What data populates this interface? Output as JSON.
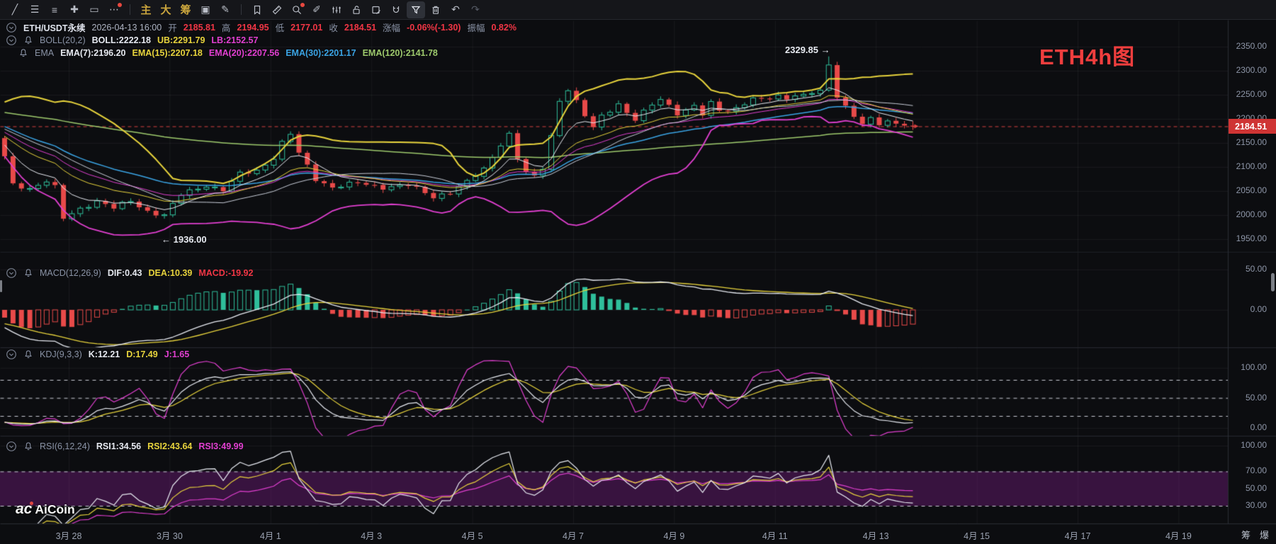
{
  "theme": {
    "bg": "#0c0d10",
    "grid": "rgba(255,255,255,0.055)",
    "panel_line": "#272a31",
    "axis_line": "#2a2d34",
    "up": "#2fbf9b",
    "down": "#e84a49",
    "yellow": "#e7d33c",
    "magenta": "#e13fd0",
    "cyan": "#3aa3e3",
    "green": "#9dc96c",
    "white_line": "#e8ebf2",
    "gray_line": "#c9ced9",
    "dashed_price": "#d94040",
    "badge": "#cf3434",
    "purple_band": "rgba(118,28,128,0.42)",
    "dash_guide": "#c8ccd4",
    "axis_text": "#8e96a8"
  },
  "toolbar": {
    "items": [
      {
        "t": "g",
        "name": "line-tool",
        "glyph": "╱"
      },
      {
        "t": "g",
        "name": "indicator-list-icon",
        "glyph": "☰"
      },
      {
        "t": "g",
        "name": "template-list-icon",
        "glyph": "≡"
      },
      {
        "t": "g",
        "name": "crosshair-tool",
        "glyph": "✚"
      },
      {
        "t": "g",
        "name": "rectangle-tool",
        "glyph": "▭"
      },
      {
        "t": "g",
        "name": "more-tools-icon",
        "glyph": "⋯",
        "dot": true
      },
      {
        "t": "d"
      },
      {
        "t": "g",
        "name": "main-chart-button",
        "glyph": "主",
        "gold": true
      },
      {
        "t": "g",
        "name": "large-view-button",
        "glyph": "大",
        "gold": true
      },
      {
        "t": "g",
        "name": "chips-button",
        "glyph": "筹",
        "gold": true
      },
      {
        "t": "g",
        "name": "edit-box-icon",
        "glyph": "▣"
      },
      {
        "t": "g",
        "name": "quick-brush-icon",
        "glyph": "✎"
      },
      {
        "t": "d"
      },
      {
        "t": "s",
        "name": "bookmark-icon",
        "sym": "bookmark"
      },
      {
        "t": "s",
        "name": "ruler-icon",
        "sym": "ruler"
      },
      {
        "t": "s",
        "name": "zoom-search-icon",
        "sym": "magnifier",
        "dot": true
      },
      {
        "t": "g",
        "name": "pencil-icon",
        "glyph": "✐"
      },
      {
        "t": "s",
        "name": "kline-bars-icon",
        "sym": "bars"
      },
      {
        "t": "s",
        "name": "lock-icon",
        "sym": "lock"
      },
      {
        "t": "s",
        "name": "note-edit-icon",
        "sym": "note"
      },
      {
        "t": "s",
        "name": "magnet-icon",
        "sym": "magnet"
      },
      {
        "t": "s",
        "name": "filter-icon",
        "sym": "funnel",
        "active": true
      },
      {
        "t": "s",
        "name": "trash-icon",
        "sym": "trash"
      },
      {
        "t": "g",
        "name": "undo-icon",
        "glyph": "↶"
      },
      {
        "t": "g",
        "name": "redo-icon",
        "glyph": "↷",
        "muted": true
      }
    ]
  },
  "legend": {
    "row1": {
      "segments": [
        {
          "text": "ETH/USDT永续",
          "color": "#dfe3ec",
          "b": true
        },
        {
          "text": "2026-04-13 16:00",
          "color": "#aeb4c2"
        },
        {
          "text": "开",
          "color": "#8a93a6"
        },
        {
          "text": "2185.81",
          "color": "#f23645",
          "b": true
        },
        {
          "text": "高",
          "color": "#8a93a6"
        },
        {
          "text": "2194.95",
          "color": "#f23645",
          "b": true
        },
        {
          "text": "低",
          "color": "#8a93a6"
        },
        {
          "text": "2177.01",
          "color": "#f23645",
          "b": true
        },
        {
          "text": "收",
          "color": "#8a93a6"
        },
        {
          "text": "2184.51",
          "color": "#f23645",
          "b": true
        },
        {
          "text": "涨幅",
          "color": "#8a93a6"
        },
        {
          "text": "-0.06%(-1.30)",
          "color": "#f23645",
          "b": true
        },
        {
          "text": "振幅",
          "color": "#8a93a6"
        },
        {
          "text": "0.82%",
          "color": "#f23645",
          "b": true
        }
      ]
    },
    "row2": {
      "segments": [
        {
          "text": "BOLL(20,2)",
          "color": "#8a93a6"
        },
        {
          "text": "BOLL:2222.18",
          "color": "#e6e9f0",
          "b": true
        },
        {
          "text": "UB:2291.79",
          "color": "#e7d33c",
          "b": true
        },
        {
          "text": "LB:2152.57",
          "color": "#e13fd0",
          "b": true
        }
      ]
    },
    "row3": {
      "segments": [
        {
          "text": "EMA",
          "color": "#8a93a6"
        },
        {
          "text": "EMA(7):2196.20",
          "color": "#e6e9f0",
          "b": true
        },
        {
          "text": "EMA(15):2207.18",
          "color": "#e7d33c",
          "b": true
        },
        {
          "text": "EMA(20):2207.56",
          "color": "#e13fd0",
          "b": true
        },
        {
          "text": "EMA(30):2201.17",
          "color": "#3aa3e3",
          "b": true
        },
        {
          "text": "EMA(120):2141.78",
          "color": "#9dc96c",
          "b": true
        }
      ]
    },
    "macd": {
      "segments": [
        {
          "text": "MACD(12,26,9)",
          "color": "#8a93a6"
        },
        {
          "text": "DIF:0.43",
          "color": "#e6e9f0",
          "b": true
        },
        {
          "text": "DEA:10.39",
          "color": "#e7d33c",
          "b": true
        },
        {
          "text": "MACD:-19.92",
          "color": "#f23645",
          "b": true
        }
      ]
    },
    "kdj": {
      "segments": [
        {
          "text": "KDJ(9,3,3)",
          "color": "#8a93a6"
        },
        {
          "text": "K:12.21",
          "color": "#e6e9f0",
          "b": true
        },
        {
          "text": "D:17.49",
          "color": "#e7d33c",
          "b": true
        },
        {
          "text": "J:1.65",
          "color": "#e13fd0",
          "b": true
        }
      ]
    },
    "rsi": {
      "segments": [
        {
          "text": "RSI(6,12,24)",
          "color": "#8a93a6"
        },
        {
          "text": "RSI1:34.56",
          "color": "#e6e9f0",
          "b": true
        },
        {
          "text": "RSI2:43.64",
          "color": "#e7d33c",
          "b": true
        },
        {
          "text": "RSI3:49.99",
          "color": "#e13fd0",
          "b": true
        }
      ]
    }
  },
  "axes": {
    "price_ticks": [
      {
        "v": 2350,
        "t": "2350.00"
      },
      {
        "v": 2300,
        "t": "2300.00"
      },
      {
        "v": 2250,
        "t": "2250.00"
      },
      {
        "v": 2200,
        "t": "2200.00"
      },
      {
        "v": 2150,
        "t": "2150.00"
      },
      {
        "v": 2100,
        "t": "2100.00"
      },
      {
        "v": 2050,
        "t": "2050.00"
      },
      {
        "v": 2000,
        "t": "2000.00"
      },
      {
        "v": 1950,
        "t": "1950.00"
      }
    ],
    "macd_ticks": [
      {
        "v": 50,
        "t": "50.00"
      },
      {
        "v": 0,
        "t": "0.00"
      }
    ],
    "kdj_ticks": [
      {
        "v": 100,
        "t": "100.00"
      },
      {
        "v": 50,
        "t": "50.00"
      },
      {
        "v": 0,
        "t": "0.00"
      }
    ],
    "rsi_ticks": [
      {
        "v": 100,
        "t": "100.00"
      },
      {
        "v": 70,
        "t": "70.00"
      },
      {
        "v": 50,
        "t": "50.00"
      },
      {
        "v": 30,
        "t": "30.00"
      }
    ],
    "dates": [
      "3月 28",
      "3月 30",
      "4月 1",
      "4月 3",
      "4月 5",
      "4月 7",
      "4月 9",
      "4月 11",
      "4月 13",
      "4月 15",
      "4月 17",
      "4月 19"
    ]
  },
  "labels": {
    "price_badge": "2184.51",
    "peak": "2329.85 →",
    "low": "← 1936.00",
    "annotation": "ETH4h图",
    "watermark_ac": "ac",
    "watermark_name": "AiCoin",
    "corner_chips": [
      "筹",
      "爆"
    ]
  },
  "chart_data": {
    "type": "candlestick+indicators",
    "symbol": "ETH/USDT永续",
    "interval": "4h",
    "price_range": [
      1950,
      2350
    ],
    "current_price": 2184.51,
    "marked_high": 2329.85,
    "marked_low": 1936.0,
    "last_candle": {
      "open": 2185.81,
      "high": 2194.95,
      "low": 2177.01,
      "close": 2184.51
    },
    "indicators": {
      "boll": [
        20,
        2
      ],
      "ema": [
        7,
        15,
        20,
        30,
        120
      ],
      "macd": [
        12,
        26,
        9
      ],
      "kdj": [
        9,
        3,
        3
      ],
      "rsi": [
        6,
        12,
        24
      ]
    },
    "candle_count": 109,
    "close_anchors": [
      [
        0,
        2120
      ],
      [
        1,
        2062
      ],
      [
        3,
        2055
      ],
      [
        5,
        2072
      ],
      [
        6,
        2058
      ],
      [
        7,
        1992
      ],
      [
        9,
        2012
      ],
      [
        11,
        2030
      ],
      [
        13,
        2015
      ],
      [
        15,
        2028
      ],
      [
        17,
        2008
      ],
      [
        19,
        2000
      ],
      [
        21,
        2042
      ],
      [
        24,
        2062
      ],
      [
        26,
        2052
      ],
      [
        28,
        2085
      ],
      [
        30,
        2092
      ],
      [
        32,
        2120
      ],
      [
        33,
        2150
      ],
      [
        34,
        2168
      ],
      [
        35,
        2128
      ],
      [
        37,
        2075
      ],
      [
        39,
        2058
      ],
      [
        42,
        2066
      ],
      [
        45,
        2058
      ],
      [
        48,
        2062
      ],
      [
        51,
        2038
      ],
      [
        53,
        2048
      ],
      [
        55,
        2068
      ],
      [
        57,
        2095
      ],
      [
        59,
        2148
      ],
      [
        60,
        2168
      ],
      [
        61,
        2118
      ],
      [
        62,
        2088
      ],
      [
        63,
        2078
      ],
      [
        64,
        2098
      ],
      [
        65,
        2165
      ],
      [
        66,
        2238
      ],
      [
        67,
        2262
      ],
      [
        68,
        2235
      ],
      [
        69,
        2205
      ],
      [
        70,
        2182
      ],
      [
        71,
        2205
      ],
      [
        73,
        2232
      ],
      [
        74,
        2212
      ],
      [
        75,
        2198
      ],
      [
        77,
        2228
      ],
      [
        78,
        2242
      ],
      [
        79,
        2228
      ],
      [
        80,
        2212
      ],
      [
        82,
        2225
      ],
      [
        83,
        2208
      ],
      [
        84,
        2232
      ],
      [
        85,
        2218
      ],
      [
        87,
        2222
      ],
      [
        88,
        2232
      ],
      [
        89,
        2242
      ],
      [
        90,
        2238
      ],
      [
        92,
        2248
      ],
      [
        93,
        2242
      ],
      [
        94,
        2252
      ],
      [
        95,
        2248
      ],
      [
        97,
        2258
      ],
      [
        98,
        2312
      ],
      [
        99,
        2248
      ],
      [
        100,
        2228
      ],
      [
        101,
        2205
      ],
      [
        102,
        2192
      ],
      [
        103,
        2198
      ],
      [
        104,
        2186
      ],
      [
        105,
        2196
      ],
      [
        106,
        2188
      ],
      [
        107,
        2186
      ],
      [
        108,
        2184.51
      ]
    ],
    "warmup": {
      "from": 2228,
      "to": 2140,
      "count": 20
    }
  }
}
